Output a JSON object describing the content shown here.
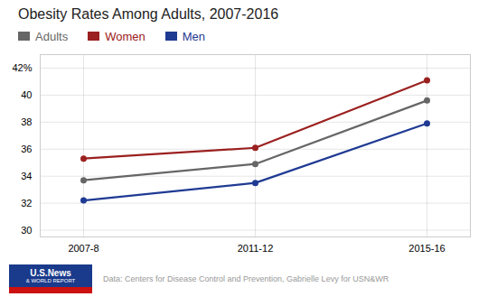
{
  "chart_data": {
    "type": "line",
    "title": "Obesity Rates Among Adults, 2007-2016",
    "categories": [
      "2007-8",
      "2011-12",
      "2015-16"
    ],
    "series": [
      {
        "name": "Adults",
        "color": "#666666",
        "values": [
          33.7,
          34.9,
          39.6
        ]
      },
      {
        "name": "Women",
        "color": "#9b2020",
        "values": [
          35.3,
          36.1,
          41.1
        ]
      },
      {
        "name": "Men",
        "color": "#1f3a93",
        "values": [
          32.2,
          33.5,
          37.9
        ]
      }
    ],
    "ylim": [
      29.5,
      43
    ],
    "yticks": [
      30,
      32,
      34,
      36,
      38,
      40,
      {
        "value": 42,
        "label": "42%"
      }
    ],
    "grid": true,
    "legend": "top-left",
    "marker": "circle",
    "annotations": [
      "U.S.News",
      "& WORLD REPORT"
    ],
    "caption": "Data: Centers for Disease Control and Prevention, Gabrielle Levy for USN&WR"
  }
}
